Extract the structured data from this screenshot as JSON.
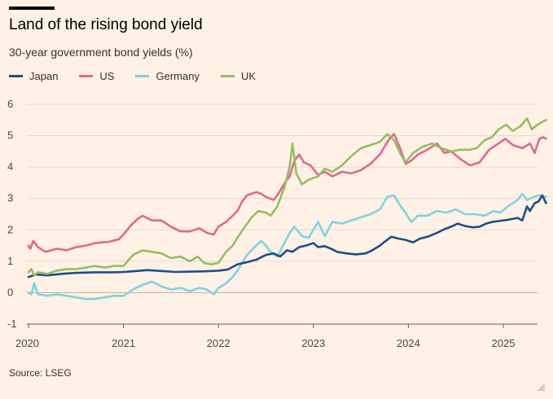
{
  "title": "Land of the rising bond yield",
  "subtitle": "30-year government bond yields (%)",
  "source": "Source: LSEG",
  "chart_data": {
    "type": "line",
    "title": "Land of the rising bond yield",
    "subtitle": "30-year government bond yields (%)",
    "xlabel": "",
    "ylabel": "",
    "xlim": [
      2020.0,
      2025.45
    ],
    "ylim": [
      -1,
      6
    ],
    "y_ticks": [
      6,
      5,
      4,
      3,
      2,
      1,
      0,
      -1
    ],
    "y_tick_labels": [
      "6",
      "5",
      "4",
      "3",
      "2",
      "1",
      "0",
      "-1"
    ],
    "x_ticks": [
      2020,
      2021,
      2022,
      2023,
      2024,
      2025
    ],
    "x_tick_labels": [
      "2020",
      "2021",
      "2022",
      "2023",
      "2024",
      "2025"
    ],
    "grid": "horizontal",
    "legend_position": "top-left",
    "series": [
      {
        "name": "Japan",
        "color": "#1F4E8C",
        "points": [
          [
            2020.0,
            0.5
          ],
          [
            2020.08,
            0.58
          ],
          [
            2020.2,
            0.55
          ],
          [
            2020.35,
            0.6
          ],
          [
            2020.5,
            0.63
          ],
          [
            2020.7,
            0.65
          ],
          [
            2020.9,
            0.65
          ],
          [
            2021.0,
            0.66
          ],
          [
            2021.1,
            0.68
          ],
          [
            2021.25,
            0.72
          ],
          [
            2021.4,
            0.69
          ],
          [
            2021.55,
            0.66
          ],
          [
            2021.7,
            0.67
          ],
          [
            2021.85,
            0.68
          ],
          [
            2022.0,
            0.7
          ],
          [
            2022.1,
            0.74
          ],
          [
            2022.2,
            0.9
          ],
          [
            2022.3,
            0.97
          ],
          [
            2022.4,
            1.05
          ],
          [
            2022.5,
            1.2
          ],
          [
            2022.58,
            1.25
          ],
          [
            2022.65,
            1.15
          ],
          [
            2022.72,
            1.35
          ],
          [
            2022.78,
            1.3
          ],
          [
            2022.85,
            1.45
          ],
          [
            2022.92,
            1.5
          ],
          [
            2023.0,
            1.58
          ],
          [
            2023.05,
            1.45
          ],
          [
            2023.12,
            1.48
          ],
          [
            2023.2,
            1.38
          ],
          [
            2023.25,
            1.3
          ],
          [
            2023.35,
            1.25
          ],
          [
            2023.45,
            1.22
          ],
          [
            2023.55,
            1.25
          ],
          [
            2023.62,
            1.35
          ],
          [
            2023.7,
            1.5
          ],
          [
            2023.75,
            1.62
          ],
          [
            2023.82,
            1.78
          ],
          [
            2023.9,
            1.72
          ],
          [
            2023.97,
            1.68
          ],
          [
            2024.05,
            1.6
          ],
          [
            2024.12,
            1.72
          ],
          [
            2024.2,
            1.78
          ],
          [
            2024.3,
            1.9
          ],
          [
            2024.38,
            2.02
          ],
          [
            2024.45,
            2.1
          ],
          [
            2024.52,
            2.2
          ],
          [
            2024.6,
            2.12
          ],
          [
            2024.68,
            2.08
          ],
          [
            2024.75,
            2.1
          ],
          [
            2024.82,
            2.2
          ],
          [
            2024.88,
            2.25
          ],
          [
            2024.95,
            2.28
          ],
          [
            2025.05,
            2.32
          ],
          [
            2025.15,
            2.38
          ],
          [
            2025.2,
            2.3
          ],
          [
            2025.25,
            2.75
          ],
          [
            2025.28,
            2.6
          ],
          [
            2025.33,
            2.85
          ],
          [
            2025.37,
            2.9
          ],
          [
            2025.41,
            3.1
          ],
          [
            2025.45,
            2.85
          ]
        ]
      },
      {
        "name": "US",
        "color": "#E0698E",
        "points": [
          [
            2020.0,
            1.5
          ],
          [
            2020.02,
            1.4
          ],
          [
            2020.05,
            1.65
          ],
          [
            2020.1,
            1.45
          ],
          [
            2020.18,
            1.3
          ],
          [
            2020.3,
            1.4
          ],
          [
            2020.4,
            1.35
          ],
          [
            2020.5,
            1.45
          ],
          [
            2020.6,
            1.5
          ],
          [
            2020.7,
            1.58
          ],
          [
            2020.85,
            1.62
          ],
          [
            2020.95,
            1.7
          ],
          [
            2021.0,
            1.85
          ],
          [
            2021.08,
            2.15
          ],
          [
            2021.15,
            2.35
          ],
          [
            2021.2,
            2.45
          ],
          [
            2021.3,
            2.3
          ],
          [
            2021.4,
            2.3
          ],
          [
            2021.5,
            2.1
          ],
          [
            2021.6,
            1.95
          ],
          [
            2021.7,
            1.95
          ],
          [
            2021.8,
            2.05
          ],
          [
            2021.88,
            1.9
          ],
          [
            2021.95,
            1.85
          ],
          [
            2022.0,
            2.1
          ],
          [
            2022.08,
            2.25
          ],
          [
            2022.15,
            2.45
          ],
          [
            2022.2,
            2.6
          ],
          [
            2022.25,
            2.9
          ],
          [
            2022.3,
            3.1
          ],
          [
            2022.4,
            3.2
          ],
          [
            2022.45,
            3.15
          ],
          [
            2022.5,
            3.05
          ],
          [
            2022.58,
            2.95
          ],
          [
            2022.62,
            3.1
          ],
          [
            2022.7,
            3.5
          ],
          [
            2022.75,
            3.7
          ],
          [
            2022.8,
            4.2
          ],
          [
            2022.85,
            4.4
          ],
          [
            2022.9,
            4.15
          ],
          [
            2022.97,
            4.05
          ],
          [
            2023.05,
            3.75
          ],
          [
            2023.12,
            3.85
          ],
          [
            2023.2,
            3.7
          ],
          [
            2023.3,
            3.85
          ],
          [
            2023.4,
            3.8
          ],
          [
            2023.5,
            3.9
          ],
          [
            2023.6,
            4.1
          ],
          [
            2023.7,
            4.4
          ],
          [
            2023.8,
            4.9
          ],
          [
            2023.85,
            5.05
          ],
          [
            2023.92,
            4.55
          ],
          [
            2023.97,
            4.1
          ],
          [
            2024.03,
            4.2
          ],
          [
            2024.1,
            4.4
          ],
          [
            2024.2,
            4.55
          ],
          [
            2024.3,
            4.75
          ],
          [
            2024.38,
            4.45
          ],
          [
            2024.45,
            4.5
          ],
          [
            2024.55,
            4.25
          ],
          [
            2024.65,
            4.05
          ],
          [
            2024.75,
            4.15
          ],
          [
            2024.85,
            4.55
          ],
          [
            2024.95,
            4.75
          ],
          [
            2025.02,
            4.9
          ],
          [
            2025.1,
            4.7
          ],
          [
            2025.2,
            4.6
          ],
          [
            2025.28,
            4.75
          ],
          [
            2025.33,
            4.45
          ],
          [
            2025.38,
            4.9
          ],
          [
            2025.42,
            4.95
          ],
          [
            2025.45,
            4.9
          ]
        ]
      },
      {
        "name": "Germany",
        "color": "#7FD3E3",
        "points": [
          [
            2020.0,
            0.0
          ],
          [
            2020.03,
            -0.05
          ],
          [
            2020.06,
            0.3
          ],
          [
            2020.1,
            -0.05
          ],
          [
            2020.2,
            -0.1
          ],
          [
            2020.3,
            -0.05
          ],
          [
            2020.4,
            -0.1
          ],
          [
            2020.5,
            -0.15
          ],
          [
            2020.6,
            -0.2
          ],
          [
            2020.7,
            -0.2
          ],
          [
            2020.8,
            -0.15
          ],
          [
            2020.9,
            -0.1
          ],
          [
            2021.0,
            -0.1
          ],
          [
            2021.1,
            0.1
          ],
          [
            2021.2,
            0.25
          ],
          [
            2021.3,
            0.35
          ],
          [
            2021.4,
            0.2
          ],
          [
            2021.5,
            0.1
          ],
          [
            2021.6,
            0.15
          ],
          [
            2021.7,
            0.05
          ],
          [
            2021.8,
            0.15
          ],
          [
            2021.88,
            0.1
          ],
          [
            2021.95,
            -0.05
          ],
          [
            2022.0,
            0.15
          ],
          [
            2022.08,
            0.3
          ],
          [
            2022.15,
            0.5
          ],
          [
            2022.2,
            0.7
          ],
          [
            2022.25,
            0.95
          ],
          [
            2022.3,
            1.2
          ],
          [
            2022.38,
            1.45
          ],
          [
            2022.45,
            1.65
          ],
          [
            2022.5,
            1.5
          ],
          [
            2022.55,
            1.3
          ],
          [
            2022.62,
            1.15
          ],
          [
            2022.68,
            1.5
          ],
          [
            2022.75,
            1.9
          ],
          [
            2022.8,
            2.1
          ],
          [
            2022.88,
            1.8
          ],
          [
            2022.95,
            1.75
          ],
          [
            2023.05,
            2.25
          ],
          [
            2023.12,
            1.8
          ],
          [
            2023.2,
            2.25
          ],
          [
            2023.3,
            2.2
          ],
          [
            2023.4,
            2.3
          ],
          [
            2023.5,
            2.4
          ],
          [
            2023.6,
            2.5
          ],
          [
            2023.7,
            2.65
          ],
          [
            2023.78,
            3.05
          ],
          [
            2023.85,
            3.1
          ],
          [
            2023.92,
            2.75
          ],
          [
            2023.97,
            2.55
          ],
          [
            2024.03,
            2.25
          ],
          [
            2024.1,
            2.45
          ],
          [
            2024.2,
            2.45
          ],
          [
            2024.3,
            2.6
          ],
          [
            2024.4,
            2.55
          ],
          [
            2024.5,
            2.65
          ],
          [
            2024.6,
            2.5
          ],
          [
            2024.7,
            2.5
          ],
          [
            2024.8,
            2.45
          ],
          [
            2024.9,
            2.6
          ],
          [
            2024.97,
            2.55
          ],
          [
            2025.05,
            2.75
          ],
          [
            2025.15,
            2.95
          ],
          [
            2025.2,
            3.15
          ],
          [
            2025.25,
            2.95
          ],
          [
            2025.32,
            3.05
          ],
          [
            2025.38,
            3.1
          ],
          [
            2025.45,
            3.05
          ]
        ]
      },
      {
        "name": "UK",
        "color": "#96BD62",
        "points": [
          [
            2020.0,
            0.65
          ],
          [
            2020.03,
            0.75
          ],
          [
            2020.06,
            0.55
          ],
          [
            2020.1,
            0.65
          ],
          [
            2020.2,
            0.6
          ],
          [
            2020.3,
            0.7
          ],
          [
            2020.4,
            0.75
          ],
          [
            2020.5,
            0.75
          ],
          [
            2020.6,
            0.8
          ],
          [
            2020.7,
            0.85
          ],
          [
            2020.8,
            0.8
          ],
          [
            2020.9,
            0.85
          ],
          [
            2021.0,
            0.85
          ],
          [
            2021.1,
            1.2
          ],
          [
            2021.2,
            1.35
          ],
          [
            2021.3,
            1.3
          ],
          [
            2021.4,
            1.25
          ],
          [
            2021.5,
            1.1
          ],
          [
            2021.6,
            1.15
          ],
          [
            2021.7,
            1.0
          ],
          [
            2021.78,
            1.15
          ],
          [
            2021.85,
            0.95
          ],
          [
            2021.92,
            0.9
          ],
          [
            2022.0,
            0.95
          ],
          [
            2022.08,
            1.3
          ],
          [
            2022.15,
            1.5
          ],
          [
            2022.2,
            1.75
          ],
          [
            2022.28,
            2.1
          ],
          [
            2022.35,
            2.4
          ],
          [
            2022.42,
            2.6
          ],
          [
            2022.5,
            2.55
          ],
          [
            2022.55,
            2.45
          ],
          [
            2022.62,
            2.75
          ],
          [
            2022.7,
            3.4
          ],
          [
            2022.75,
            4.0
          ],
          [
            2022.78,
            4.75
          ],
          [
            2022.82,
            3.8
          ],
          [
            2022.88,
            3.45
          ],
          [
            2022.95,
            3.6
          ],
          [
            2023.05,
            3.7
          ],
          [
            2023.12,
            3.95
          ],
          [
            2023.2,
            3.85
          ],
          [
            2023.3,
            4.05
          ],
          [
            2023.4,
            4.35
          ],
          [
            2023.5,
            4.6
          ],
          [
            2023.6,
            4.7
          ],
          [
            2023.7,
            4.8
          ],
          [
            2023.78,
            5.05
          ],
          [
            2023.85,
            4.85
          ],
          [
            2023.92,
            4.4
          ],
          [
            2023.97,
            4.15
          ],
          [
            2024.05,
            4.45
          ],
          [
            2024.15,
            4.65
          ],
          [
            2024.25,
            4.75
          ],
          [
            2024.35,
            4.6
          ],
          [
            2024.45,
            4.5
          ],
          [
            2024.55,
            4.55
          ],
          [
            2024.65,
            4.55
          ],
          [
            2024.72,
            4.6
          ],
          [
            2024.8,
            4.85
          ],
          [
            2024.88,
            4.95
          ],
          [
            2024.95,
            5.2
          ],
          [
            2025.03,
            5.35
          ],
          [
            2025.1,
            5.15
          ],
          [
            2025.18,
            5.3
          ],
          [
            2025.25,
            5.55
          ],
          [
            2025.3,
            5.2
          ],
          [
            2025.36,
            5.35
          ],
          [
            2025.42,
            5.45
          ],
          [
            2025.45,
            5.5
          ]
        ]
      }
    ]
  }
}
